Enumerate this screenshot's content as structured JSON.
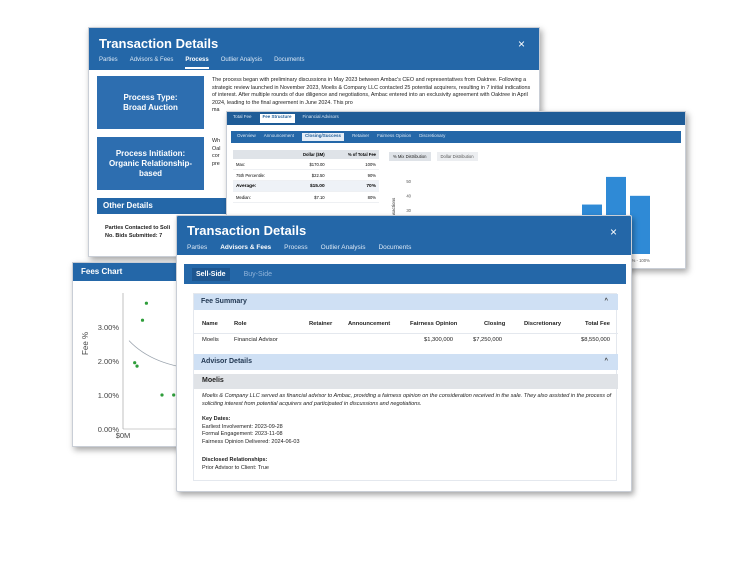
{
  "back_window": {
    "title": "Transaction Details",
    "close": "×",
    "tabs": [
      "Parties",
      "Advisors & Fees",
      "Process",
      "Outlier Analysis",
      "Documents"
    ],
    "active_tab": "Process",
    "process_type_label": "Process Type: Broad Auction",
    "process_initiation_label": "Process Initiation: Organic Relationship-based",
    "process_paragraph": "The process began with preliminary discussions in May 2023 between Ambac's CEO and representatives from Oaktree. Following a strategic review launched in November 2023, Moelis & Company LLC contacted 25 potential acquirers, resulting in 7 initial indications of interest. After multiple rounds of due diligence and negotiations, Ambac entered into an exclusivity agreement with Oaktree in April 2024, leading to the final agreement in June 2024. This pro",
    "process_paragraph_tail": "ma",
    "initiation_paragraph_lines": [
      "Wh",
      "Oal",
      "cor",
      "pre"
    ],
    "other_details_heading": "Other Details",
    "parties_contacted": "Parties Contacted to Soli",
    "bids_submitted": "No. Bids Submitted: 7"
  },
  "fees_chart_window": {
    "title": "Fees Chart",
    "y_axis_label": "Fee %",
    "x_axis_first_tick": "$0M"
  },
  "fee_structure_window": {
    "top_tabs": [
      "Total Fee",
      "Fee Structure",
      "Financial Advisors"
    ],
    "top_active": "Fee Structure",
    "sub_tabs": [
      "Overview",
      "Announcement",
      "Closing/Success",
      "Retainer",
      "Fairness Opinion",
      "Discretionary"
    ],
    "sub_active": "Closing/Success",
    "stats_table": {
      "headers": [
        "",
        "Dollar ($M)",
        "% of Total Fee"
      ],
      "rows": [
        [
          "Max:",
          "$170.00",
          "100%"
        ],
        [
          "75th Percentile:",
          "$22.50",
          "90%"
        ],
        [
          "Average:",
          "$15.00",
          "70%"
        ],
        [
          "Median:",
          "$7.10",
          "80%"
        ]
      ]
    },
    "dist_tabs": [
      "% Mix Distribution",
      "Dollar Distribution"
    ],
    "dist_active": "% Mix Distribution",
    "y_axis_label": "# of Transactions",
    "y_ticks": [
      "50",
      "40",
      "30",
      "20"
    ],
    "x_tick_fragments": [
      "90%",
      "90% - 100%"
    ]
  },
  "front_window": {
    "title": "Transaction Details",
    "close": "×",
    "tabs": [
      "Parties",
      "Advisors & Fees",
      "Process",
      "Outlier Analysis",
      "Documents"
    ],
    "active_tab": "Advisors & Fees",
    "side_tabs": [
      "Sell-Side",
      "Buy-Side"
    ],
    "side_active": "Sell-Side",
    "fee_summary": {
      "heading": "Fee Summary",
      "columns": [
        "Name",
        "Role",
        "Retainer",
        "Announcement",
        "Fairness Opinion",
        "Closing",
        "Discretionary",
        "Total Fee"
      ],
      "rows": [
        [
          "Moelis",
          "Financial Advisor",
          "",
          "",
          "$1,300,000",
          "$7,250,000",
          "",
          "$8,550,000"
        ]
      ]
    },
    "advisor_details": {
      "heading": "Advisor Details",
      "advisor_name": "Moelis",
      "description": "Moelis & Company LLC served as financial advisor to Ambac, providing a fairness opinion on the consideration received in the sale. They also assisted in the process of soliciting interest from potential acquirers and participated in discussions and negotiations.",
      "key_dates_label": "Key Dates:",
      "key_dates": [
        "Earliest Involvement: 2023-09-28",
        "Formal Engagement: 2023-11-08",
        "Fairness Opinion Delivered: 2024-06-03"
      ],
      "relationships_label": "Disclosed Relationships:",
      "relationships": [
        "Prior Advisor to Client: True"
      ]
    }
  },
  "chart_data": [
    {
      "type": "scatter",
      "title": "Fees Chart",
      "ylabel": "Fee %",
      "y_ticks": [
        "0.00%",
        "1.00%",
        "2.00%",
        "3.00%"
      ],
      "x_ticks": [
        "$0M"
      ],
      "ylim": [
        0,
        4
      ],
      "series": [
        {
          "x": [
            0.3,
            0.25,
            0.15,
            0.18,
            0.5,
            0.65,
            0.95
          ],
          "y": [
            3.7,
            3.2,
            1.95,
            1.85,
            1.0,
            1.0,
            2.0
          ]
        }
      ],
      "trend_line": true
    },
    {
      "type": "bar",
      "ylabel": "# of Transactions",
      "y_ticks": [
        "50",
        "40",
        "30",
        "20"
      ],
      "visible_bars": [
        {
          "label": "",
          "value": 23
        },
        {
          "label": "",
          "value": 34
        },
        {
          "label": "90%",
          "value": 53
        },
        {
          "label": "90% - 100%",
          "value": 40
        }
      ]
    }
  ]
}
